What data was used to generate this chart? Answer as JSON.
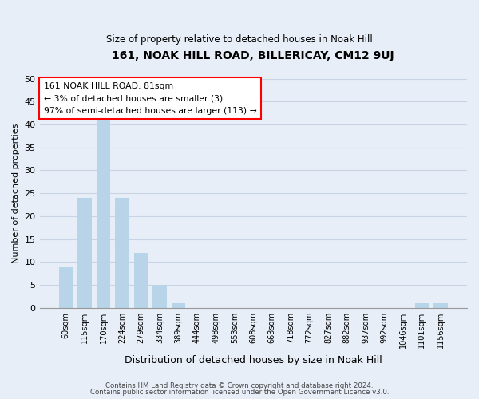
{
  "title": "161, NOAK HILL ROAD, BILLERICAY, CM12 9UJ",
  "subtitle": "Size of property relative to detached houses in Noak Hill",
  "xlabel": "Distribution of detached houses by size in Noak Hill",
  "ylabel": "Number of detached properties",
  "bar_labels": [
    "60sqm",
    "115sqm",
    "170sqm",
    "224sqm",
    "279sqm",
    "334sqm",
    "389sqm",
    "444sqm",
    "498sqm",
    "553sqm",
    "608sqm",
    "663sqm",
    "718sqm",
    "772sqm",
    "827sqm",
    "882sqm",
    "937sqm",
    "992sqm",
    "1046sqm",
    "1101sqm",
    "1156sqm"
  ],
  "bar_values": [
    9,
    24,
    41,
    24,
    12,
    5,
    1,
    0,
    0,
    0,
    0,
    0,
    0,
    0,
    0,
    0,
    0,
    0,
    0,
    1,
    1
  ],
  "bar_color": "#b8d4e8",
  "ylim": [
    0,
    50
  ],
  "yticks": [
    0,
    5,
    10,
    15,
    20,
    25,
    30,
    35,
    40,
    45,
    50
  ],
  "ann_line1": "161 NOAK HILL ROAD: 81sqm",
  "ann_line2": "← 3% of detached houses are smaller (3)",
  "ann_line3": "97% of semi-detached houses are larger (113) →",
  "ann_box_color": "white",
  "ann_box_edgecolor": "red",
  "footer_line1": "Contains HM Land Registry data © Crown copyright and database right 2024.",
  "footer_line2": "Contains public sector information licensed under the Open Government Licence v3.0.",
  "background_color": "#e8eef8",
  "grid_color": "#c8d4e4"
}
